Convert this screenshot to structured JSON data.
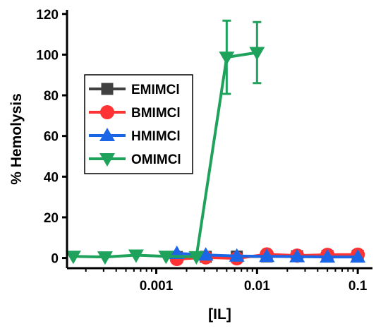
{
  "chart_data": {
    "type": "line",
    "xlabel": "[IL]",
    "ylabel": "% Hemolysis",
    "x_scale": "log",
    "xlim": [
      0.00013,
      0.14
    ],
    "ylim": [
      -5,
      122
    ],
    "x_ticks": [
      0.001,
      0.01,
      0.1
    ],
    "x_tick_labels": [
      "0.001",
      "0.01",
      "0.1"
    ],
    "y_ticks": [
      0,
      20,
      40,
      60,
      80,
      100,
      120
    ],
    "y_tick_labels": [
      "0",
      "20",
      "40",
      "60",
      "80",
      "100",
      "120"
    ],
    "grid": false,
    "legend_position": "center-left",
    "series": [
      {
        "name": "EMIMCl",
        "color": "#404040",
        "marker": "square",
        "x": [
          0.0016,
          0.0031,
          0.0063,
          0.0125,
          0.025,
          0.05,
          0.1
        ],
        "y": [
          0.5,
          0.6,
          0.7,
          0.8,
          0.9,
          1.0,
          1.1
        ],
        "err": [
          0,
          0,
          0,
          0,
          0,
          0,
          0
        ]
      },
      {
        "name": "BMIMCl",
        "color": "#ff3333",
        "marker": "circle",
        "x": [
          0.0016,
          0.0031,
          0.0063,
          0.0125,
          0.025,
          0.05,
          0.1
        ],
        "y": [
          -0.5,
          0.3,
          -0.2,
          1.8,
          1.2,
          1.6,
          1.7
        ],
        "err": [
          0,
          0,
          0,
          0,
          0,
          0,
          0
        ]
      },
      {
        "name": "HMIMCl",
        "color": "#1a66e6",
        "marker": "triangle-up",
        "x": [
          0.0016,
          0.0031,
          0.0063,
          0.0125,
          0.025,
          0.05,
          0.1
        ],
        "y": [
          2.3,
          1.5,
          1.0,
          0.8,
          0.7,
          0.5,
          0.5
        ],
        "err": [
          0,
          0,
          0,
          0,
          0,
          0,
          0
        ]
      },
      {
        "name": "OMIMCl",
        "color": "#1fa35c",
        "marker": "triangle-down",
        "x": [
          0.00015,
          0.00031,
          0.00063,
          0.00125,
          0.0025,
          0.005,
          0.01
        ],
        "y": [
          0.8,
          0.5,
          1.4,
          0.8,
          0.6,
          98.7,
          101.0
        ],
        "err": [
          0,
          0,
          0,
          0,
          0,
          18,
          15
        ]
      }
    ]
  }
}
